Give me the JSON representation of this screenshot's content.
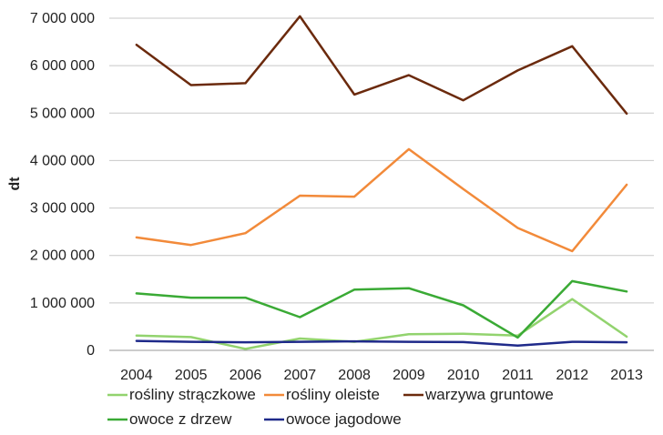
{
  "chart_data": {
    "type": "line",
    "title": "",
    "xlabel": "",
    "ylabel": "dt",
    "x": [
      "2004",
      "2005",
      "2006",
      "2007",
      "2008",
      "2009",
      "2010",
      "2011",
      "2012",
      "2013"
    ],
    "ylim": [
      0,
      7000000
    ],
    "yticks": [
      0,
      1000000,
      2000000,
      3000000,
      4000000,
      5000000,
      6000000,
      7000000
    ],
    "ytick_labels": [
      "0",
      "1 000 000",
      "2 000 000",
      "3 000 000",
      "4 000 000",
      "5 000 000",
      "6 000 000",
      "7 000 000"
    ],
    "grid": "horizontal",
    "legend_position": "bottom",
    "series": [
      {
        "name": "rośliny strączkowe",
        "color": "#92d36e",
        "values": [
          310000,
          280000,
          30000,
          250000,
          180000,
          340000,
          350000,
          310000,
          1080000,
          290000
        ]
      },
      {
        "name": "rośliny oleiste",
        "color": "#f28a3a",
        "values": [
          2380000,
          2220000,
          2470000,
          3260000,
          3240000,
          4240000,
          3400000,
          2580000,
          2090000,
          3490000
        ]
      },
      {
        "name": "warzywa gruntowe",
        "color": "#6b2a0d",
        "values": [
          6440000,
          5590000,
          5630000,
          7040000,
          5390000,
          5800000,
          5270000,
          5900000,
          6410000,
          4990000
        ]
      },
      {
        "name": "owoce z drzew",
        "color": "#3aaa35",
        "values": [
          1200000,
          1110000,
          1110000,
          700000,
          1280000,
          1310000,
          950000,
          270000,
          1460000,
          1240000
        ]
      },
      {
        "name": "owoce jagodowe",
        "color": "#1f2a8a",
        "values": [
          200000,
          180000,
          170000,
          180000,
          190000,
          180000,
          175000,
          100000,
          180000,
          170000
        ]
      }
    ]
  }
}
